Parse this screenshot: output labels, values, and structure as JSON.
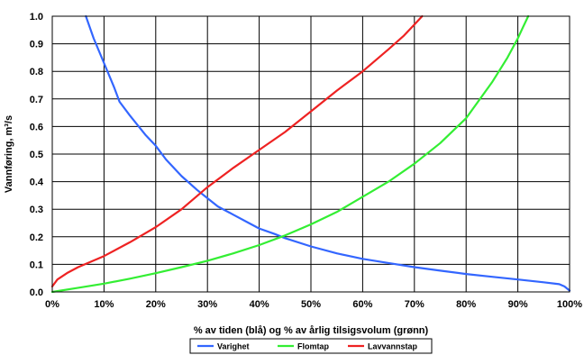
{
  "chart_data": {
    "type": "line",
    "title": "",
    "xlabel": "% av tiden (blå) og % av årlig tilsigsvolum (grønn)",
    "ylabel": "Vannføring, m³/s",
    "xlim": [
      0,
      100
    ],
    "ylim": [
      0,
      1.0
    ],
    "x_ticks": [
      "0%",
      "10%",
      "20%",
      "30%",
      "40%",
      "50%",
      "60%",
      "70%",
      "80%",
      "90%",
      "100%"
    ],
    "y_ticks": [
      "0.0",
      "0.1",
      "0.2",
      "0.3",
      "0.4",
      "0.5",
      "0.6",
      "0.7",
      "0.8",
      "0.9",
      "1.0"
    ],
    "grid": true,
    "legend_position": "bottom",
    "series": [
      {
        "name": "Varighet",
        "color": "#3366ff",
        "x": [
          6.5,
          8,
          10,
          12,
          13,
          15,
          18,
          20,
          22,
          25,
          28,
          30,
          32,
          35,
          38,
          40,
          43,
          45,
          50,
          55,
          60,
          65,
          70,
          75,
          80,
          85,
          90,
          95,
          98,
          99,
          100
        ],
        "y": [
          1.0,
          0.92,
          0.83,
          0.74,
          0.69,
          0.64,
          0.57,
          0.53,
          0.48,
          0.42,
          0.37,
          0.34,
          0.31,
          0.28,
          0.25,
          0.23,
          0.21,
          0.195,
          0.165,
          0.14,
          0.12,
          0.105,
          0.09,
          0.077,
          0.065,
          0.055,
          0.045,
          0.035,
          0.028,
          0.02,
          0.005
        ]
      },
      {
        "name": "Flomtap",
        "color": "#33ee33",
        "x": [
          0,
          5,
          10,
          15,
          20,
          25,
          30,
          35,
          40,
          45,
          50,
          55,
          60,
          65,
          70,
          75,
          80,
          85,
          88,
          90,
          91,
          92
        ],
        "y": [
          0.0,
          0.015,
          0.03,
          0.048,
          0.068,
          0.09,
          0.113,
          0.14,
          0.17,
          0.205,
          0.245,
          0.29,
          0.345,
          0.4,
          0.465,
          0.54,
          0.63,
          0.76,
          0.85,
          0.92,
          0.96,
          1.0
        ]
      },
      {
        "name": "Lavvannstap",
        "color": "#ee2222",
        "x": [
          0,
          1,
          3,
          5,
          10,
          15,
          20,
          25,
          30,
          35,
          40,
          45,
          50,
          55,
          60,
          65,
          68,
          70,
          71.5
        ],
        "y": [
          0.02,
          0.045,
          0.07,
          0.09,
          0.13,
          0.18,
          0.235,
          0.3,
          0.38,
          0.45,
          0.515,
          0.58,
          0.655,
          0.73,
          0.8,
          0.88,
          0.93,
          0.97,
          1.0
        ]
      }
    ]
  }
}
